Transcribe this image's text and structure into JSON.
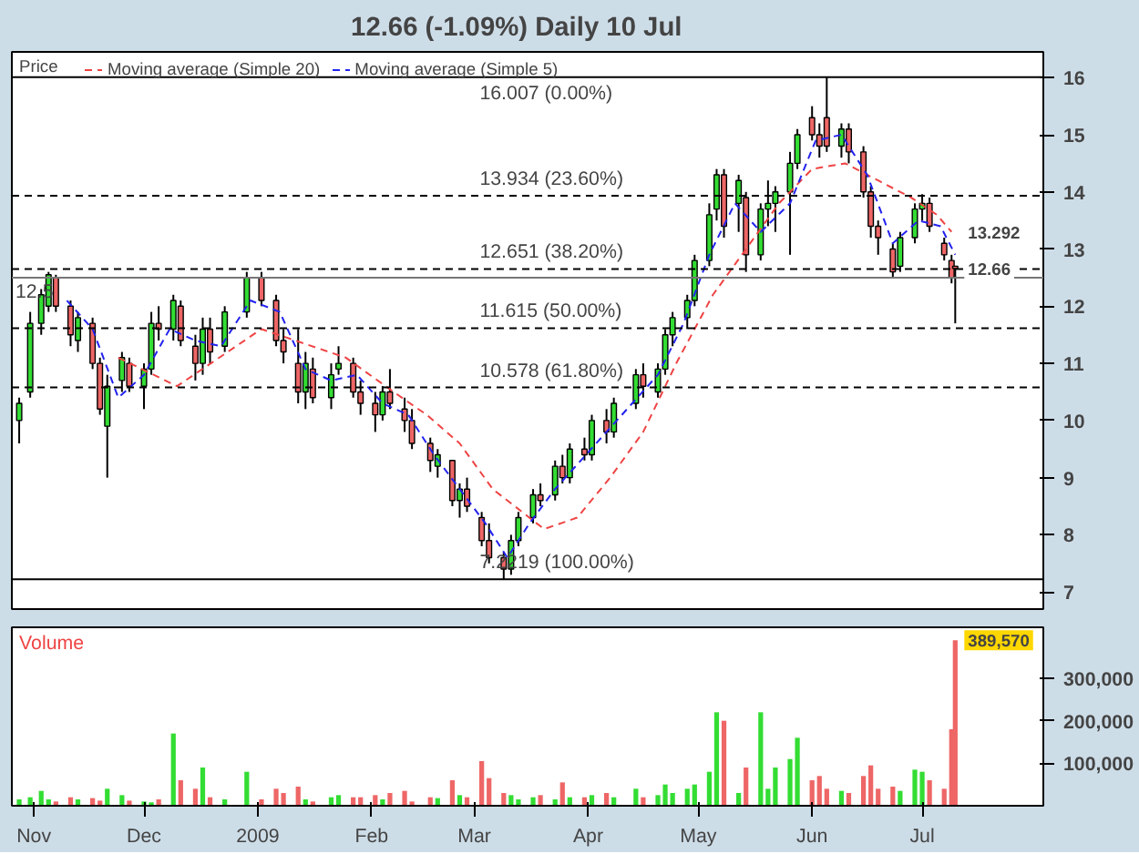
{
  "chart_data": [
    {
      "type": "candlestick",
      "title": "12.66 (-1.09%)   Daily  10 Jul",
      "legend": "top left",
      "legend_title": "Price",
      "tick_labels": "y",
      "grid": false,
      "xlim": [
        "2008-10-26",
        "2009-08-03"
      ],
      "ylim": [
        6.7,
        16.45
      ],
      "yticks": [
        7,
        8,
        9,
        10,
        11,
        12,
        13,
        14,
        15,
        16
      ],
      "series": [
        {
          "color": "#000000",
          "x": [
            "2008-10-28",
            "2008-10-31",
            "2008-11-03",
            "2008-11-05",
            "2008-11-07",
            "2008-11-11",
            "2008-11-13",
            "2008-11-17",
            "2008-11-19",
            "2008-11-21",
            "2008-11-25",
            "2008-11-27",
            "2008-12-01",
            "2008-12-03",
            "2008-12-05",
            "2008-12-09",
            "2008-12-11",
            "2008-12-15",
            "2008-12-17",
            "2008-12-19",
            "2008-12-23",
            "2008-12-29",
            "2009-01-02",
            "2009-01-06",
            "2009-01-08",
            "2009-01-12",
            "2009-01-14",
            "2009-01-16",
            "2009-01-21",
            "2009-01-23",
            "2009-01-27",
            "2009-01-29",
            "2009-02-02",
            "2009-02-04",
            "2009-02-06",
            "2009-02-10",
            "2009-02-12",
            "2009-02-17",
            "2009-02-19",
            "2009-02-23",
            "2009-02-25",
            "2009-02-27",
            "2009-03-03",
            "2009-03-05",
            "2009-03-09",
            "2009-03-11",
            "2009-03-13",
            "2009-03-17",
            "2009-03-19",
            "2009-03-23",
            "2009-03-25",
            "2009-03-27",
            "2009-03-31",
            "2009-04-02",
            "2009-04-06",
            "2009-04-08",
            "2009-04-14",
            "2009-04-16",
            "2009-04-20",
            "2009-04-22",
            "2009-04-24",
            "2009-04-28",
            "2009-04-30",
            "2009-05-04",
            "2009-05-06",
            "2009-05-08",
            "2009-05-12",
            "2009-05-14",
            "2009-05-18",
            "2009-05-20",
            "2009-05-22",
            "2009-05-26",
            "2009-05-28",
            "2009-06-01",
            "2009-06-03",
            "2009-06-05",
            "2009-06-09",
            "2009-06-11",
            "2009-06-15",
            "2009-06-17",
            "2009-06-19",
            "2009-06-23",
            "2009-06-25",
            "2009-06-29",
            "2009-07-01",
            "2009-07-03",
            "2009-07-07",
            "2009-07-09",
            "2009-07-10"
          ],
          "ohlc": [
            [
              10.0,
              10.4,
              9.6,
              10.3
            ],
            [
              10.5,
              11.9,
              10.4,
              11.7
            ],
            [
              11.7,
              12.3,
              11.5,
              12.2
            ],
            [
              12.0,
              12.6,
              11.9,
              12.55
            ],
            [
              12.5,
              12.55,
              11.9,
              12.0
            ],
            [
              12.0,
              12.1,
              11.3,
              11.5
            ],
            [
              11.4,
              11.9,
              11.2,
              11.8
            ],
            [
              11.7,
              11.8,
              10.9,
              11.0
            ],
            [
              11.0,
              11.1,
              10.1,
              10.2
            ],
            [
              9.9,
              10.8,
              9.0,
              10.6
            ],
            [
              10.7,
              11.2,
              10.5,
              11.1
            ],
            [
              11.0,
              11.1,
              10.5,
              10.6
            ],
            [
              10.6,
              11.0,
              10.2,
              10.9
            ],
            [
              10.9,
              11.9,
              10.8,
              11.7
            ],
            [
              11.7,
              12.0,
              11.4,
              11.6
            ],
            [
              11.6,
              12.2,
              11.4,
              12.1
            ],
            [
              12.0,
              12.1,
              11.3,
              11.4
            ],
            [
              11.3,
              11.5,
              10.7,
              11.0
            ],
            [
              11.0,
              11.8,
              10.8,
              11.6
            ],
            [
              11.6,
              11.8,
              11.0,
              11.2
            ],
            [
              11.3,
              12.0,
              11.2,
              11.9
            ],
            [
              11.9,
              12.6,
              11.8,
              12.5
            ],
            [
              12.5,
              12.6,
              12.0,
              12.1
            ],
            [
              12.1,
              12.2,
              11.3,
              11.4
            ],
            [
              11.4,
              11.6,
              11.0,
              11.2
            ],
            [
              11.0,
              11.6,
              10.3,
              10.5
            ],
            [
              10.5,
              11.2,
              10.2,
              11.0
            ],
            [
              10.9,
              11.1,
              10.3,
              10.4
            ],
            [
              10.4,
              11.0,
              10.2,
              10.8
            ],
            [
              10.9,
              11.3,
              10.8,
              11.0
            ],
            [
              11.0,
              11.1,
              10.4,
              10.5
            ],
            [
              10.5,
              10.7,
              10.1,
              10.3
            ],
            [
              10.3,
              10.5,
              9.8,
              10.1
            ],
            [
              10.1,
              10.6,
              10.0,
              10.5
            ],
            [
              10.5,
              10.9,
              10.2,
              10.3
            ],
            [
              10.2,
              10.4,
              9.8,
              10.0
            ],
            [
              10.0,
              10.2,
              9.5,
              9.6
            ],
            [
              9.6,
              9.7,
              9.1,
              9.3
            ],
            [
              9.2,
              9.5,
              9.0,
              9.4
            ],
            [
              9.3,
              9.3,
              8.5,
              8.6
            ],
            [
              8.6,
              8.9,
              8.3,
              8.8
            ],
            [
              8.8,
              9.0,
              8.4,
              8.5
            ],
            [
              8.3,
              8.4,
              7.8,
              7.9
            ],
            [
              7.9,
              8.2,
              7.5,
              7.6
            ],
            [
              7.6,
              7.7,
              7.2219,
              7.4
            ],
            [
              7.4,
              8.0,
              7.3,
              7.9
            ],
            [
              7.9,
              8.4,
              7.8,
              8.3
            ],
            [
              8.3,
              8.8,
              8.2,
              8.7
            ],
            [
              8.7,
              8.9,
              8.5,
              8.6
            ],
            [
              8.7,
              9.3,
              8.6,
              9.2
            ],
            [
              9.2,
              9.4,
              8.9,
              9.0
            ],
            [
              9.0,
              9.6,
              8.9,
              9.5
            ],
            [
              9.5,
              9.7,
              9.3,
              9.4
            ],
            [
              9.4,
              10.1,
              9.3,
              10.0
            ],
            [
              10.0,
              10.2,
              9.6,
              9.8
            ],
            [
              9.8,
              10.4,
              9.7,
              10.3
            ],
            [
              10.3,
              10.9,
              10.2,
              10.8
            ],
            [
              10.8,
              11.0,
              10.4,
              10.6
            ],
            [
              10.5,
              11.0,
              10.4,
              10.9
            ],
            [
              10.9,
              11.6,
              10.8,
              11.5
            ],
            [
              11.5,
              11.9,
              11.3,
              11.8
            ],
            [
              11.8,
              12.2,
              11.6,
              12.1
            ],
            [
              12.1,
              12.9,
              12.0,
              12.8
            ],
            [
              12.8,
              13.8,
              12.7,
              13.6
            ],
            [
              13.7,
              14.4,
              13.5,
              14.3
            ],
            [
              14.3,
              14.4,
              13.2,
              13.4
            ],
            [
              13.8,
              14.3,
              13.3,
              14.2
            ],
            [
              13.9,
              14.0,
              12.6,
              12.9
            ],
            [
              12.9,
              13.8,
              12.8,
              13.7
            ],
            [
              13.7,
              14.2,
              13.4,
              13.8
            ],
            [
              13.8,
              14.1,
              13.3,
              14.0
            ],
            [
              14.0,
              14.7,
              12.9,
              14.5
            ],
            [
              14.5,
              15.1,
              14.4,
              15.0
            ],
            [
              15.3,
              15.5,
              14.9,
              15.0
            ],
            [
              15.0,
              15.2,
              14.6,
              14.8
            ],
            [
              15.3,
              16.007,
              14.7,
              14.8
            ],
            [
              14.8,
              15.2,
              14.6,
              15.1
            ],
            [
              15.1,
              15.2,
              14.5,
              14.7
            ],
            [
              14.7,
              14.8,
              13.9,
              14.0
            ],
            [
              14.0,
              14.1,
              13.2,
              13.4
            ],
            [
              13.4,
              13.5,
              12.9,
              13.2
            ],
            [
              13.0,
              13.1,
              12.5,
              12.6
            ],
            [
              12.7,
              13.3,
              12.6,
              13.2
            ],
            [
              13.2,
              13.8,
              13.1,
              13.7
            ],
            [
              13.7,
              13.96,
              13.5,
              13.8
            ],
            [
              13.8,
              13.9,
              13.3,
              13.4
            ],
            [
              13.1,
              13.2,
              12.8,
              12.9
            ],
            [
              12.8,
              12.9,
              12.4,
              12.5
            ],
            [
              12.7,
              12.7,
              11.7,
              12.66
            ]
          ],
          "colors": [
            "#33dd33",
            "#33dd33",
            "#33dd33",
            "#33dd33",
            "#ee6666",
            "#ee6666",
            "#33dd33",
            "#ee6666",
            "#ee6666",
            "#33dd33",
            "#33dd33",
            "#ee6666",
            "#33dd33",
            "#33dd33",
            "#ee6666",
            "#33dd33",
            "#ee6666",
            "#ee6666",
            "#33dd33",
            "#ee6666",
            "#33dd33",
            "#33dd33",
            "#ee6666",
            "#ee6666",
            "#ee6666",
            "#ee6666",
            "#33dd33",
            "#ee6666",
            "#33dd33",
            "#33dd33",
            "#ee6666",
            "#ee6666",
            "#ee6666",
            "#33dd33",
            "#ee6666",
            "#ee6666",
            "#ee6666",
            "#ee6666",
            "#33dd33",
            "#ee6666",
            "#33dd33",
            "#ee6666",
            "#ee6666",
            "#ee6666",
            "#ee6666",
            "#33dd33",
            "#33dd33",
            "#33dd33",
            "#ee6666",
            "#33dd33",
            "#ee6666",
            "#33dd33",
            "#ee6666",
            "#33dd33",
            "#ee6666",
            "#33dd33",
            "#33dd33",
            "#ee6666",
            "#33dd33",
            "#33dd33",
            "#33dd33",
            "#33dd33",
            "#33dd33",
            "#33dd33",
            "#33dd33",
            "#ee6666",
            "#33dd33",
            "#ee6666",
            "#33dd33",
            "#33dd33",
            "#33dd33",
            "#33dd33",
            "#33dd33",
            "#ee6666",
            "#ee6666",
            "#ee6666",
            "#33dd33",
            "#ee6666",
            "#ee6666",
            "#ee6666",
            "#ee6666",
            "#ee6666",
            "#33dd33",
            "#33dd33",
            "#33dd33",
            "#ee6666",
            "#ee6666",
            "#ee6666",
            "#ee6666"
          ]
        },
        {
          "name": "Moving average (Simple 20)",
          "type": "line",
          "color": "#ee4444",
          "line_style": "dashed",
          "x": [
            "2008-11-24",
            "2008-12-10",
            "2009-01-02",
            "2009-01-25",
            "2009-02-07",
            "2009-02-16",
            "2009-02-25",
            "2009-03-06",
            "2009-03-20",
            "2009-03-29",
            "2009-04-07",
            "2009-04-16",
            "2009-04-25",
            "2009-05-05",
            "2009-05-14",
            "2009-05-23",
            "2009-06-01",
            "2009-06-10",
            "2009-06-19",
            "2009-06-28",
            "2009-07-05",
            "2009-07-09"
          ],
          "values": [
            11.1,
            10.6,
            11.6,
            11.1,
            10.5,
            10.1,
            9.6,
            8.8,
            8.1,
            8.3,
            9.0,
            9.8,
            11.0,
            12.2,
            13.0,
            13.8,
            14.4,
            14.5,
            14.2,
            13.9,
            13.6,
            13.3
          ]
        },
        {
          "name": "Moving average (Simple 5)",
          "type": "line",
          "color": "#2222ee",
          "line_style": "dashed",
          "x": [
            "2008-11-10",
            "2008-11-17",
            "2008-11-24",
            "2008-12-01",
            "2008-12-08",
            "2008-12-15",
            "2008-12-22",
            "2008-12-30",
            "2009-01-07",
            "2009-01-14",
            "2009-01-21",
            "2009-01-28",
            "2009-02-04",
            "2009-02-11",
            "2009-02-18",
            "2009-02-25",
            "2009-03-04",
            "2009-03-10",
            "2009-03-16",
            "2009-03-23",
            "2009-03-30",
            "2009-04-06",
            "2009-04-13",
            "2009-04-20",
            "2009-04-27",
            "2009-05-04",
            "2009-05-11",
            "2009-05-18",
            "2009-05-26",
            "2009-06-02",
            "2009-06-09",
            "2009-06-16",
            "2009-06-23",
            "2009-06-30",
            "2009-07-06",
            "2009-07-10"
          ],
          "values": [
            12.1,
            11.6,
            10.4,
            10.8,
            11.6,
            11.4,
            11.3,
            12.1,
            11.9,
            10.9,
            10.7,
            10.8,
            10.3,
            10.1,
            9.4,
            8.8,
            8.2,
            7.6,
            8.2,
            8.8,
            9.3,
            9.8,
            10.3,
            10.8,
            11.7,
            12.9,
            13.8,
            13.3,
            13.8,
            14.9,
            15.0,
            14.3,
            13.1,
            13.5,
            13.4,
            12.9
          ]
        }
      ],
      "ref_lines": [
        {
          "axis": "y",
          "value": 16.007,
          "label": "16.007 (0.00%)",
          "color": "#000000",
          "line_style": "solid"
        },
        {
          "axis": "y",
          "value": 13.934,
          "label": "13.934 (23.60%)",
          "color": "#000000",
          "line_style": "dashed"
        },
        {
          "axis": "y",
          "value": 12.651,
          "label": "12.651 (38.20%)",
          "color": "#000000",
          "line_style": "dashed"
        },
        {
          "axis": "y",
          "value": 12.5,
          "label": "12.5",
          "color": "#777777",
          "line_style": "solid"
        },
        {
          "axis": "y",
          "value": 11.615,
          "label": "11.615 (50.00%)",
          "color": "#000000",
          "line_style": "dashed"
        },
        {
          "axis": "y",
          "value": 10.578,
          "label": "10.578 (61.80%)",
          "color": "#000000",
          "line_style": "dashed"
        },
        {
          "axis": "y",
          "value": 7.2219,
          "label": "7.2219 (100.00%)",
          "color": "#000000",
          "line_style": "solid"
        }
      ],
      "annotations": [
        {
          "text": "13.292",
          "x": "2009-07-10",
          "y": 13.292
        },
        {
          "text": "12.66",
          "x": "2009-07-10",
          "y": 12.66
        }
      ]
    },
    {
      "type": "bar",
      "grid": false,
      "xlim": [
        "2008-10-26",
        "2009-08-03"
      ],
      "ylim": [
        0,
        420000
      ],
      "yticks": [
        {
          "value": 100000,
          "label": "100,000"
        },
        {
          "value": 200000,
          "label": "200,000"
        },
        {
          "value": 300000,
          "label": "300,000"
        }
      ],
      "xticks": [
        {
          "value": "2008-11-01",
          "label": "Nov"
        },
        {
          "value": "2008-12-01",
          "label": "Dec"
        },
        {
          "value": "2009-01-01",
          "label": "2009"
        },
        {
          "value": "2009-02-01",
          "label": "Feb"
        },
        {
          "value": "2009-03-01",
          "label": "Mar"
        },
        {
          "value": "2009-04-01",
          "label": "Apr"
        },
        {
          "value": "2009-05-01",
          "label": "May"
        },
        {
          "value": "2009-06-01",
          "label": "Jun"
        },
        {
          "value": "2009-07-01",
          "label": "Jul"
        }
      ],
      "series": [
        {
          "name": "Volume",
          "color": "#ee4444",
          "x": [
            "2008-10-28",
            "2008-10-31",
            "2008-11-03",
            "2008-11-05",
            "2008-11-07",
            "2008-11-11",
            "2008-11-13",
            "2008-11-17",
            "2008-11-19",
            "2008-11-21",
            "2008-11-25",
            "2008-11-27",
            "2008-12-01",
            "2008-12-03",
            "2008-12-05",
            "2008-12-09",
            "2008-12-11",
            "2008-12-15",
            "2008-12-17",
            "2008-12-19",
            "2008-12-23",
            "2008-12-29",
            "2009-01-02",
            "2009-01-06",
            "2009-01-08",
            "2009-01-12",
            "2009-01-14",
            "2009-01-16",
            "2009-01-21",
            "2009-01-23",
            "2009-01-27",
            "2009-01-29",
            "2009-02-02",
            "2009-02-04",
            "2009-02-06",
            "2009-02-10",
            "2009-02-12",
            "2009-02-17",
            "2009-02-19",
            "2009-02-23",
            "2009-02-25",
            "2009-02-27",
            "2009-03-03",
            "2009-03-05",
            "2009-03-09",
            "2009-03-11",
            "2009-03-13",
            "2009-03-17",
            "2009-03-19",
            "2009-03-23",
            "2009-03-25",
            "2009-03-27",
            "2009-03-31",
            "2009-04-02",
            "2009-04-06",
            "2009-04-08",
            "2009-04-14",
            "2009-04-16",
            "2009-04-20",
            "2009-04-22",
            "2009-04-24",
            "2009-04-28",
            "2009-04-30",
            "2009-05-04",
            "2009-05-06",
            "2009-05-08",
            "2009-05-12",
            "2009-05-14",
            "2009-05-18",
            "2009-05-20",
            "2009-05-22",
            "2009-05-26",
            "2009-05-28",
            "2009-06-01",
            "2009-06-03",
            "2009-06-05",
            "2009-06-09",
            "2009-06-11",
            "2009-06-15",
            "2009-06-17",
            "2009-06-19",
            "2009-06-23",
            "2009-06-25",
            "2009-06-29",
            "2009-07-01",
            "2009-07-03",
            "2009-07-07",
            "2009-07-09",
            "2009-07-10"
          ],
          "values": [
            15000,
            20000,
            35000,
            15000,
            10000,
            20000,
            15000,
            18000,
            12000,
            40000,
            25000,
            12000,
            10000,
            8000,
            15000,
            170000,
            60000,
            40000,
            90000,
            20000,
            15000,
            80000,
            15000,
            40000,
            30000,
            45000,
            15000,
            10000,
            20000,
            25000,
            20000,
            20000,
            25000,
            15000,
            30000,
            35000,
            10000,
            20000,
            18000,
            60000,
            25000,
            20000,
            105000,
            65000,
            30000,
            25000,
            15000,
            20000,
            25000,
            15000,
            55000,
            20000,
            20000,
            25000,
            30000,
            20000,
            40000,
            20000,
            25000,
            50000,
            30000,
            40000,
            50000,
            80000,
            220000,
            200000,
            30000,
            90000,
            220000,
            40000,
            90000,
            110000,
            160000,
            60000,
            70000,
            40000,
            35000,
            30000,
            70000,
            95000,
            40000,
            45000,
            35000,
            85000,
            80000,
            60000,
            40000,
            180000,
            389570
          ],
          "colors": [
            "#33dd33",
            "#33dd33",
            "#33dd33",
            "#33dd33",
            "#ee6666",
            "#ee6666",
            "#33dd33",
            "#ee6666",
            "#ee6666",
            "#33dd33",
            "#33dd33",
            "#ee6666",
            "#33dd33",
            "#33dd33",
            "#ee6666",
            "#33dd33",
            "#ee6666",
            "#ee6666",
            "#33dd33",
            "#ee6666",
            "#33dd33",
            "#33dd33",
            "#ee6666",
            "#ee6666",
            "#ee6666",
            "#ee6666",
            "#33dd33",
            "#ee6666",
            "#33dd33",
            "#33dd33",
            "#ee6666",
            "#ee6666",
            "#ee6666",
            "#33dd33",
            "#ee6666",
            "#ee6666",
            "#ee6666",
            "#ee6666",
            "#33dd33",
            "#ee6666",
            "#33dd33",
            "#ee6666",
            "#ee6666",
            "#ee6666",
            "#ee6666",
            "#33dd33",
            "#33dd33",
            "#33dd33",
            "#ee6666",
            "#33dd33",
            "#ee6666",
            "#33dd33",
            "#ee6666",
            "#33dd33",
            "#ee6666",
            "#33dd33",
            "#33dd33",
            "#ee6666",
            "#33dd33",
            "#33dd33",
            "#33dd33",
            "#33dd33",
            "#33dd33",
            "#33dd33",
            "#33dd33",
            "#ee6666",
            "#33dd33",
            "#ee6666",
            "#33dd33",
            "#33dd33",
            "#33dd33",
            "#33dd33",
            "#33dd33",
            "#ee6666",
            "#ee6666",
            "#ee6666",
            "#33dd33",
            "#ee6666",
            "#ee6666",
            "#ee6666",
            "#ee6666",
            "#ee6666",
            "#33dd33",
            "#33dd33",
            "#33dd33",
            "#ee6666",
            "#ee6666",
            "#ee6666",
            "#ee6666"
          ]
        }
      ],
      "annotations": [
        {
          "text": "389,570",
          "x": "2009-07-10",
          "y": 389570
        }
      ]
    }
  ]
}
